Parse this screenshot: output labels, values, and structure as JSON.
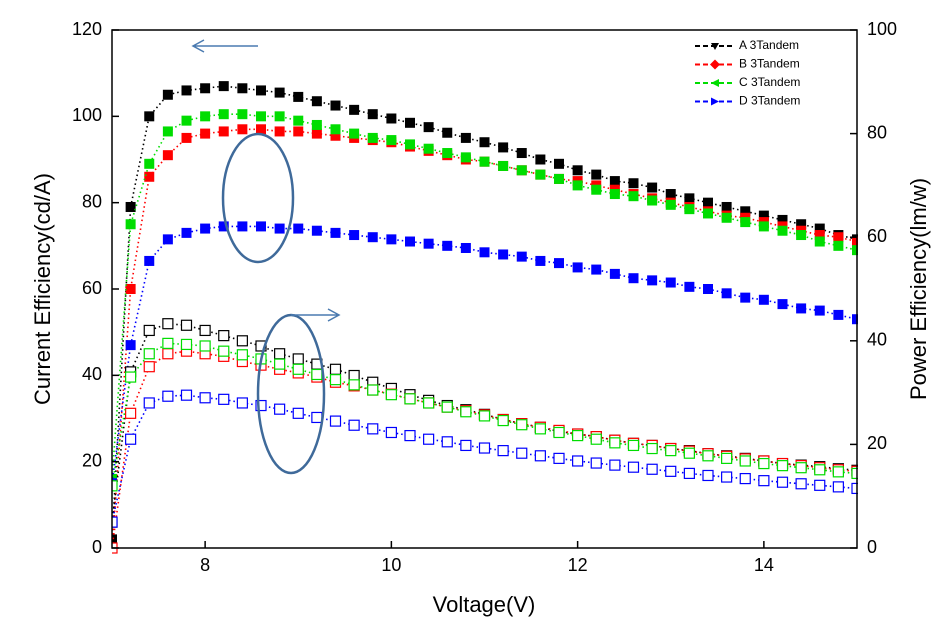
{
  "chart_data": {
    "type": "line",
    "x_label": "Voltage(V)",
    "y_label": "Current Efficiency(cd/A)",
    "y2_label": "Power Efficiency(lm/w)",
    "x": [
      7,
      7.2,
      7.4,
      7.6,
      7.8,
      8,
      8.2,
      8.4,
      8.6,
      8.8,
      9,
      9.2,
      9.4,
      9.6,
      9.8,
      10,
      10.2,
      10.4,
      10.6,
      10.8,
      11,
      11.2,
      11.4,
      11.6,
      11.8,
      12,
      12.2,
      12.4,
      12.6,
      12.8,
      13,
      13.2,
      13.4,
      13.6,
      13.8,
      14,
      14.2,
      14.4,
      14.6,
      14.8,
      15
    ],
    "xlim": [
      7,
      15
    ],
    "xticks": [
      8,
      10,
      12,
      14
    ],
    "ylim": [
      0,
      120
    ],
    "yticks": [
      0,
      20,
      40,
      60,
      80,
      100,
      120
    ],
    "y2lim": [
      0,
      100
    ],
    "y2ticks": [
      0,
      20,
      40,
      60,
      80,
      100
    ],
    "legend": "upper right",
    "series": [
      {
        "name": "A 3Tandem",
        "color": "#000000",
        "marker": "filled",
        "legend_marker": "triangle-down",
        "values": [
          2,
          79,
          100,
          105,
          106,
          106.5,
          107,
          106.5,
          106,
          105.5,
          104.5,
          103.5,
          102.5,
          101.5,
          100.5,
          99.5,
          98.5,
          97.5,
          96.2,
          95,
          94,
          92.8,
          91.5,
          90,
          89,
          87.5,
          86.5,
          85,
          84.5,
          83.5,
          82,
          81,
          80,
          79,
          78,
          77,
          76,
          75,
          74,
          72.5,
          71.5
        ]
      },
      {
        "name": "B 3Tandem",
        "color": "#ff0000",
        "marker": "filled",
        "legend_marker": "diamond",
        "values": [
          0,
          60,
          86,
          91,
          95,
          96,
          96.5,
          97,
          97,
          96.5,
          96.5,
          96,
          95.5,
          95,
          94.5,
          94,
          93,
          92,
          91,
          90,
          89.5,
          88.5,
          87.5,
          86.5,
          85.5,
          85,
          84,
          83,
          82,
          81,
          80,
          79,
          78,
          77,
          76.5,
          75.5,
          74.5,
          73.5,
          72.5,
          72,
          71
        ]
      },
      {
        "name": "C 3Tandem",
        "color": "#00dd00",
        "marker": "filled",
        "legend_marker": "triangle-left",
        "values": [
          16,
          75,
          89,
          96.5,
          99,
          100,
          100.5,
          100.5,
          100,
          100,
          99,
          98,
          97,
          96,
          95,
          94.5,
          93.5,
          92.5,
          91.5,
          90.5,
          89.5,
          88.5,
          87.5,
          86.5,
          85.5,
          84,
          83,
          82,
          81.5,
          80.5,
          79.5,
          78.5,
          77.5,
          76.5,
          75.5,
          74.5,
          73.5,
          72.5,
          71,
          70,
          69
        ]
      },
      {
        "name": "D 3Tandem",
        "color": "#0000ff",
        "marker": "filled",
        "legend_marker": "triangle-right",
        "values": [
          15,
          47,
          66.5,
          71.5,
          73,
          74,
          74.5,
          74.5,
          74.5,
          74,
          74,
          73.5,
          73,
          72.5,
          72,
          71.5,
          71,
          70.5,
          70,
          69.5,
          68.5,
          68,
          67.5,
          66.5,
          66,
          65,
          64.5,
          63.5,
          62.5,
          62,
          61.5,
          60.5,
          60,
          59,
          58,
          57.5,
          56.5,
          55.5,
          55,
          54,
          53
        ]
      },
      {
        "color": "#000000",
        "marker": "open",
        "axis": "y2",
        "values": [
          5,
          34,
          42,
          43.3,
          43,
          42,
          41,
          40,
          39,
          37.5,
          36.5,
          35.5,
          34.5,
          33.3,
          32,
          30.8,
          29.6,
          28.5,
          27.5,
          26.7,
          25.8,
          24.8,
          24,
          23.3,
          22.5,
          22,
          21.5,
          20.8,
          20.2,
          19.8,
          19.2,
          18.8,
          18.2,
          17.8,
          17.3,
          16.8,
          16.3,
          16,
          15.7,
          15.3,
          15
        ]
      },
      {
        "color": "#ff0000",
        "marker": "open",
        "axis": "y2",
        "values": [
          0,
          26,
          35,
          37.5,
          38,
          37.5,
          37,
          36,
          35.3,
          34.5,
          33.8,
          33,
          32,
          31.3,
          30.5,
          29.7,
          28.8,
          28,
          27.2,
          26.5,
          25.7,
          24.8,
          24,
          23.3,
          22.7,
          22,
          21.5,
          20.8,
          20.2,
          19.8,
          19.2,
          18.7,
          18.2,
          17.7,
          17.2,
          16.8,
          16.3,
          15.9,
          15.5,
          15.1,
          14.8
        ]
      },
      {
        "color": "#00dd00",
        "marker": "open",
        "axis": "y2",
        "values": [
          12,
          33,
          37.5,
          39.5,
          39.3,
          39,
          38,
          37.3,
          36.5,
          35.5,
          34.5,
          33.5,
          32.5,
          31.5,
          30.5,
          29.6,
          28.8,
          28,
          27.2,
          26.3,
          25.5,
          24.6,
          23.8,
          23,
          22.3,
          21.7,
          21,
          20.3,
          19.8,
          19.2,
          18.8,
          18.3,
          17.8,
          17.3,
          16.8,
          16.3,
          15.9,
          15.5,
          15.1,
          14.7,
          14.4
        ]
      },
      {
        "color": "#0000ff",
        "marker": "open",
        "axis": "y2",
        "values": [
          5,
          21,
          28,
          29.3,
          29.5,
          29,
          28.7,
          28,
          27.5,
          26.8,
          26,
          25.2,
          24.5,
          23.7,
          23,
          22.3,
          21.7,
          21,
          20.5,
          19.8,
          19.3,
          18.8,
          18.3,
          17.8,
          17.3,
          16.8,
          16.4,
          16,
          15.6,
          15.2,
          14.8,
          14.4,
          14,
          13.7,
          13.4,
          13,
          12.7,
          12.4,
          12.1,
          11.8,
          11.5
        ]
      }
    ]
  }
}
